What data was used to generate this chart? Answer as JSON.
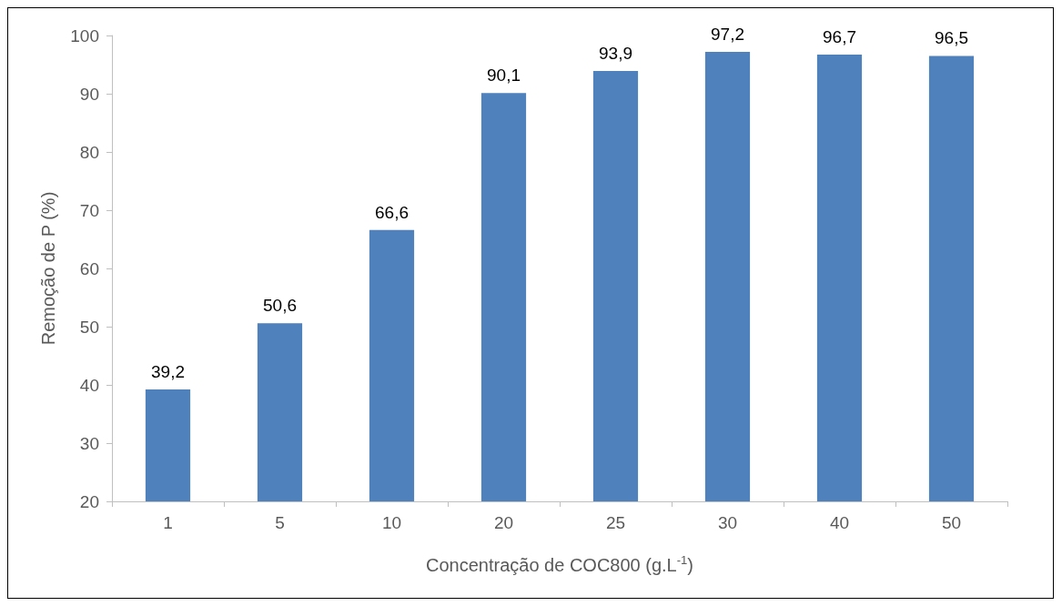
{
  "chart_data": {
    "type": "bar",
    "xlabel": "Concentração de COC800 (g.L$^{-1}$)",
    "ylabel": "Remoção de P (%)",
    "categories": [
      "1",
      "5",
      "10",
      "20",
      "25",
      "30",
      "40",
      "50"
    ],
    "values": [
      39.2,
      50.6,
      66.6,
      90.1,
      93.9,
      97.2,
      96.7,
      96.5
    ],
    "value_labels": [
      "39,2",
      "50,6",
      "66,6",
      "90,1",
      "93,9",
      "97,2",
      "96,7",
      "96,5"
    ],
    "color": "#4f81bd",
    "ylim": [
      20,
      100
    ],
    "yticks": [
      20,
      30,
      40,
      50,
      60,
      70,
      80,
      90,
      100
    ],
    "grid": false
  }
}
